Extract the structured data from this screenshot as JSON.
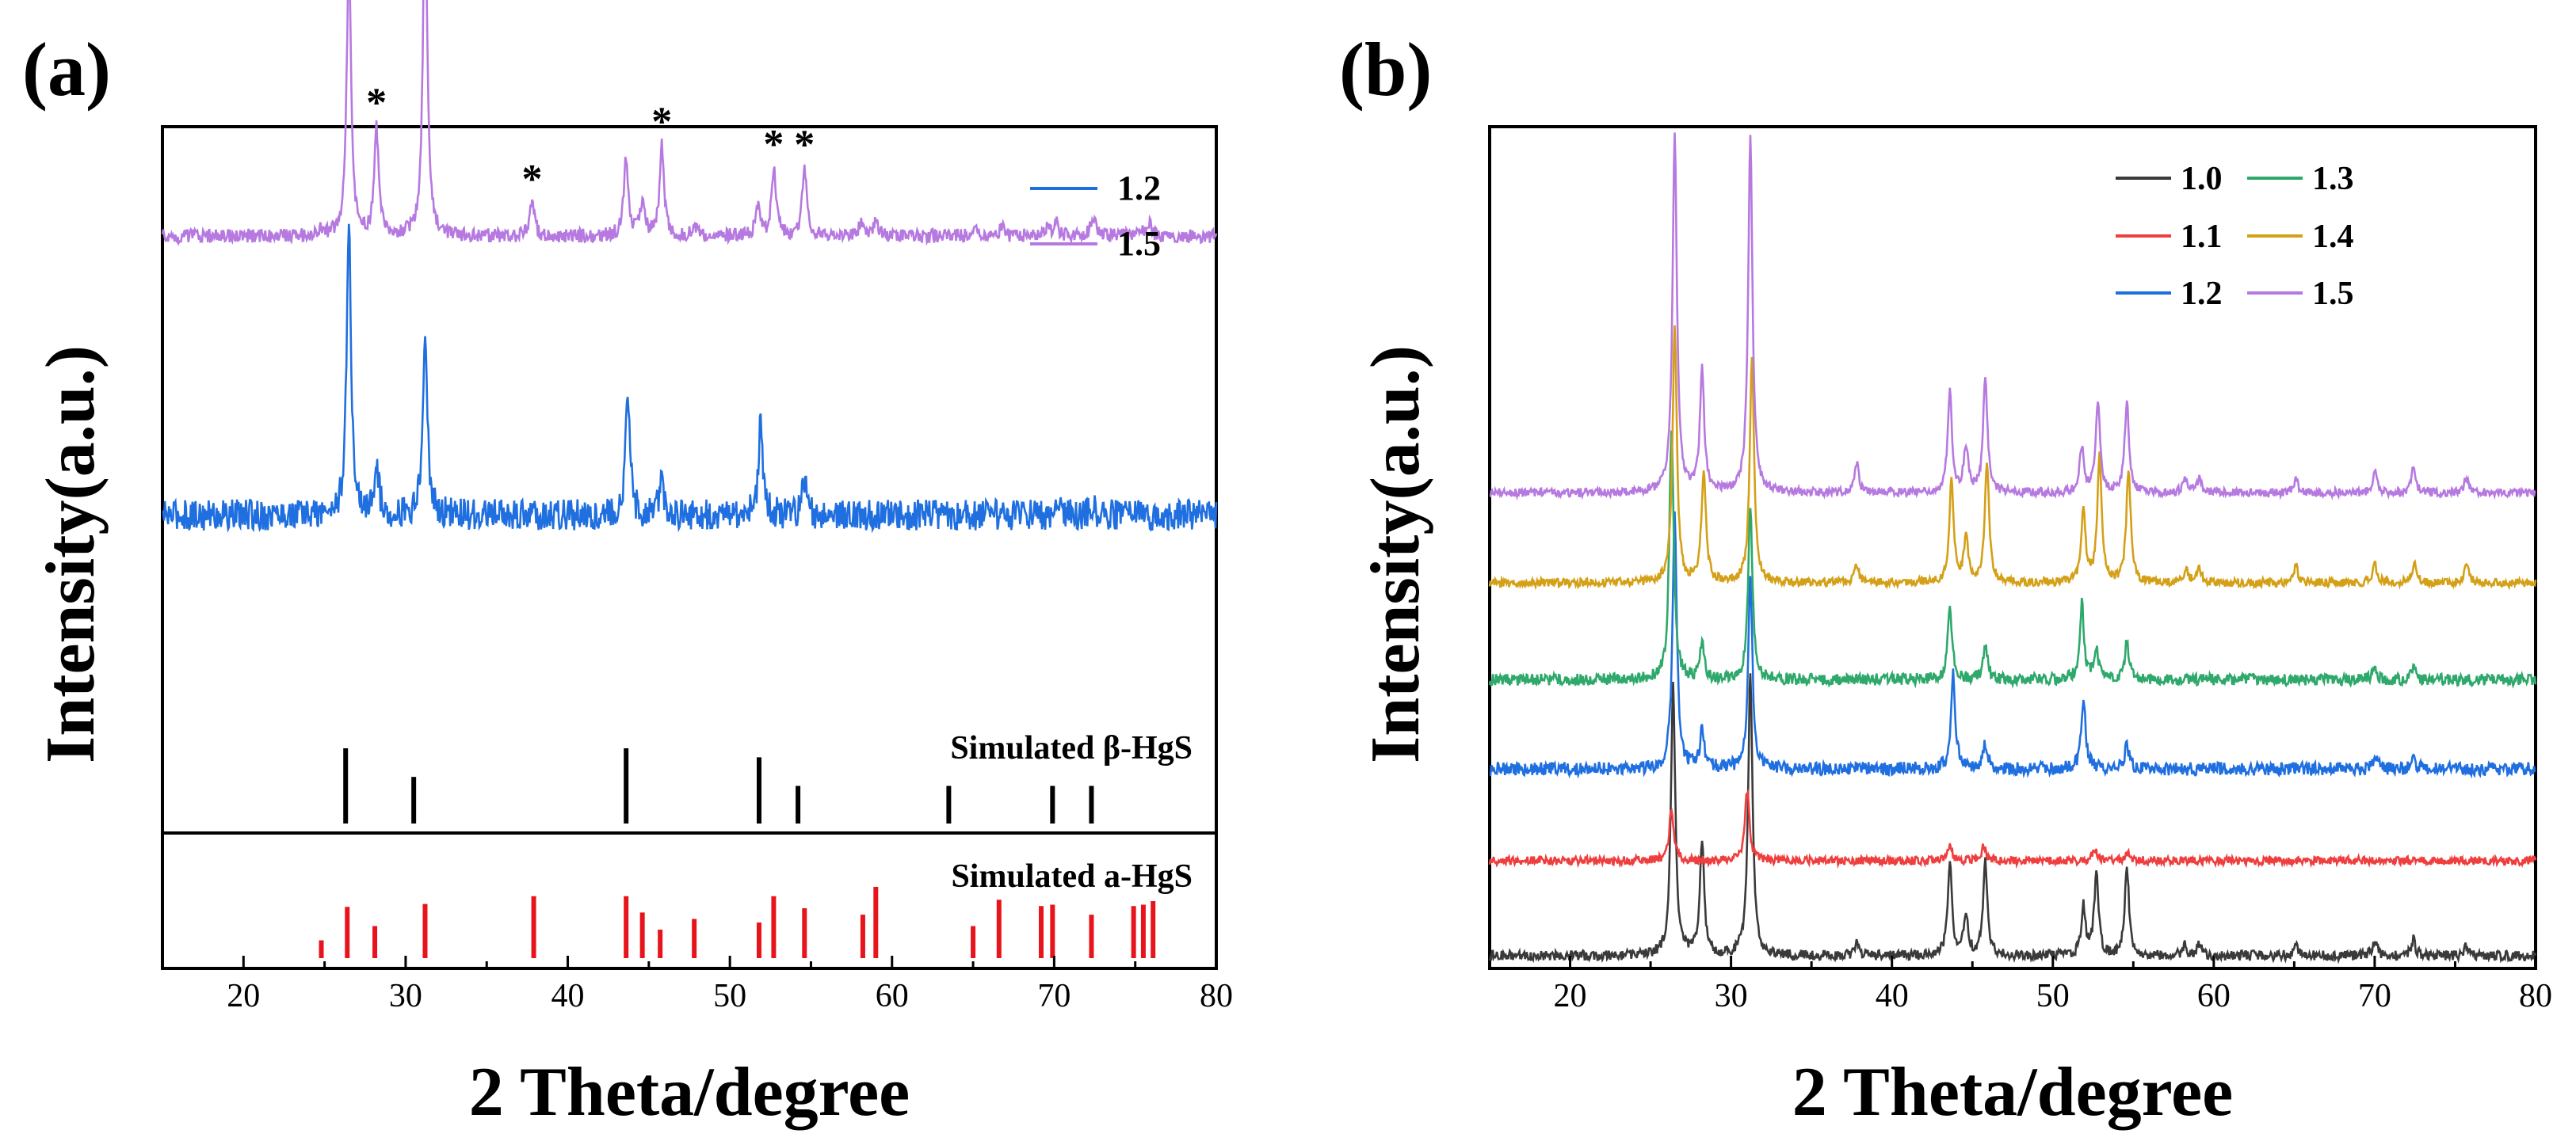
{
  "chart_data": [
    {
      "panel_label": "(a)",
      "type": "line",
      "xlabel": "2 Theta/degree",
      "ylabel": "Intensity(a.u.)",
      "xlim": [
        15,
        80
      ],
      "xticks": [
        20,
        30,
        40,
        50,
        60,
        70,
        80
      ],
      "grid": false,
      "legend": {
        "placement": "top-right",
        "entries": [
          "1.2",
          "1.5"
        ]
      },
      "series": [
        {
          "name": "1.2",
          "color": "#1f6fe0",
          "baseline": 0.45,
          "scale": 0.41,
          "noise": 0.022,
          "peaks": [
            [
              26.5,
              1.0
            ],
            [
              28.2,
              0.18
            ],
            [
              31.2,
              0.66
            ],
            [
              43.7,
              0.42
            ],
            [
              45.8,
              0.12
            ],
            [
              51.9,
              0.32
            ],
            [
              54.6,
              0.12
            ],
            [
              70.1,
              0.05
            ],
            [
              72.4,
              0.04
            ]
          ]
        },
        {
          "name": "1.5",
          "color": "#b679e0",
          "baseline": 0.845,
          "scale": 0.4,
          "noise": 0.01,
          "peaks": [
            [
              24.8,
              0.02
            ],
            [
              26.5,
              1.0
            ],
            [
              28.2,
              0.38
            ],
            [
              31.2,
              1.21
            ],
            [
              37.8,
              0.12
            ],
            [
              43.6,
              0.28
            ],
            [
              44.6,
              0.12
            ],
            [
              45.8,
              0.32
            ],
            [
              47.8,
              0.04
            ],
            [
              51.7,
              0.11
            ],
            [
              52.7,
              0.24
            ],
            [
              54.6,
              0.24
            ],
            [
              58.1,
              0.05
            ],
            [
              59.0,
              0.05
            ],
            [
              65.1,
              0.05
            ],
            [
              66.8,
              0.03
            ],
            [
              69.5,
              0.03
            ],
            [
              70.1,
              0.05
            ],
            [
              72.4,
              0.07
            ],
            [
              75.2,
              0.03
            ],
            [
              75.9,
              0.04
            ]
          ]
        }
      ],
      "asterisks": [
        28.2,
        37.8,
        45.8,
        52.7,
        54.6
      ],
      "reference_patterns": [
        {
          "name": "Simulated β-HgS",
          "color": "#000000",
          "lines": [
            [
              26.3,
              1.0
            ],
            [
              30.5,
              0.62
            ],
            [
              43.6,
              1.0
            ],
            [
              51.8,
              0.88
            ],
            [
              54.2,
              0.5
            ],
            [
              63.5,
              0.5
            ],
            [
              69.9,
              0.5
            ],
            [
              72.3,
              0.5
            ]
          ]
        },
        {
          "name": "Simulated a-HgS",
          "color": "#e8141c",
          "lines": [
            [
              24.8,
              0.25
            ],
            [
              26.4,
              0.72
            ],
            [
              28.1,
              0.45
            ],
            [
              31.2,
              0.76
            ],
            [
              37.9,
              0.87
            ],
            [
              43.6,
              0.87
            ],
            [
              44.6,
              0.64
            ],
            [
              45.7,
              0.4
            ],
            [
              47.8,
              0.55
            ],
            [
              51.8,
              0.5
            ],
            [
              52.7,
              0.87
            ],
            [
              54.6,
              0.7
            ],
            [
              58.2,
              0.61
            ],
            [
              59.0,
              1.0
            ],
            [
              65.0,
              0.45
            ],
            [
              66.6,
              0.82
            ],
            [
              69.2,
              0.73
            ],
            [
              69.9,
              0.75
            ],
            [
              72.3,
              0.61
            ],
            [
              74.9,
              0.73
            ],
            [
              75.5,
              0.75
            ],
            [
              76.1,
              0.8
            ]
          ]
        }
      ]
    },
    {
      "panel_label": "(b)",
      "type": "line",
      "xlabel": "2 Theta/degree",
      "ylabel": "Intensity(a.u.)",
      "xlim": [
        15,
        80
      ],
      "xticks": [
        20,
        30,
        40,
        50,
        60,
        70,
        80
      ],
      "grid": false,
      "legend": {
        "placement": "top-right",
        "entries": [
          "1.0",
          "1.3",
          "1.1",
          "1.4",
          "1.2",
          "1.5"
        ]
      },
      "series": [
        {
          "name": "1.0",
          "color": "#3a3a3a",
          "baseline": 0.015,
          "scale": 0.32,
          "noise": 0.006,
          "peaks": [
            [
              26.4,
              1.0
            ],
            [
              28.2,
              0.42
            ],
            [
              31.2,
              1.06
            ],
            [
              37.8,
              0.05
            ],
            [
              43.6,
              0.34
            ],
            [
              44.6,
              0.15
            ],
            [
              45.8,
              0.35
            ],
            [
              51.9,
              0.18
            ],
            [
              52.7,
              0.3
            ],
            [
              54.6,
              0.33
            ],
            [
              58.2,
              0.04
            ],
            [
              59.1,
              0.04
            ],
            [
              65.1,
              0.04
            ],
            [
              70.0,
              0.06
            ],
            [
              72.4,
              0.06
            ],
            [
              75.7,
              0.04
            ]
          ]
        },
        {
          "name": "1.1",
          "color": "#ef3e3e",
          "baseline": 0.128,
          "scale": 0.14,
          "noise": 0.005,
          "peaks": [
            [
              26.3,
              0.45
            ],
            [
              31.0,
              0.6
            ],
            [
              43.6,
              0.12
            ],
            [
              45.7,
              0.12
            ],
            [
              52.6,
              0.1
            ],
            [
              54.6,
              0.07
            ]
          ]
        },
        {
          "name": "1.2",
          "color": "#1f6fe0",
          "baseline": 0.237,
          "scale": 0.3,
          "noise": 0.008,
          "peaks": [
            [
              26.5,
              1.0
            ],
            [
              28.2,
              0.15
            ],
            [
              31.2,
              0.75
            ],
            [
              43.8,
              0.38
            ],
            [
              45.8,
              0.1
            ],
            [
              51.9,
              0.28
            ],
            [
              54.6,
              0.1
            ],
            [
              70.0,
              0.05
            ],
            [
              72.4,
              0.04
            ]
          ]
        },
        {
          "name": "1.3",
          "color": "#2ea86b",
          "baseline": 0.343,
          "scale": 0.3,
          "noise": 0.007,
          "peaks": [
            [
              26.3,
              1.0
            ],
            [
              28.2,
              0.15
            ],
            [
              31.2,
              0.7
            ],
            [
              43.6,
              0.3
            ],
            [
              45.8,
              0.14
            ],
            [
              51.8,
              0.3
            ],
            [
              52.7,
              0.12
            ],
            [
              54.6,
              0.15
            ],
            [
              70.0,
              0.05
            ],
            [
              72.4,
              0.05
            ]
          ]
        },
        {
          "name": "1.4",
          "color": "#d4a017",
          "baseline": 0.458,
          "scale": 0.3,
          "noise": 0.005,
          "peaks": [
            [
              26.5,
              1.0
            ],
            [
              28.3,
              0.45
            ],
            [
              31.3,
              0.9
            ],
            [
              37.8,
              0.08
            ],
            [
              43.7,
              0.4
            ],
            [
              44.6,
              0.18
            ],
            [
              45.9,
              0.48
            ],
            [
              51.9,
              0.28
            ],
            [
              52.9,
              0.5
            ],
            [
              54.7,
              0.45
            ],
            [
              58.3,
              0.05
            ],
            [
              59.1,
              0.06
            ],
            [
              65.1,
              0.07
            ],
            [
              70.0,
              0.08
            ],
            [
              72.5,
              0.08
            ],
            [
              75.7,
              0.08
            ]
          ]
        },
        {
          "name": "1.5",
          "color": "#b679e0",
          "baseline": 0.565,
          "scale": 0.3,
          "noise": 0.005,
          "peaks": [
            [
              26.5,
              1.42
            ],
            [
              28.2,
              0.48
            ],
            [
              31.2,
              1.41
            ],
            [
              37.8,
              0.12
            ],
            [
              43.6,
              0.4
            ],
            [
              44.6,
              0.18
            ],
            [
              45.8,
              0.45
            ],
            [
              51.8,
              0.18
            ],
            [
              52.8,
              0.36
            ],
            [
              54.6,
              0.36
            ],
            [
              58.2,
              0.06
            ],
            [
              59.1,
              0.06
            ],
            [
              65.1,
              0.06
            ],
            [
              70.0,
              0.08
            ],
            [
              72.4,
              0.1
            ],
            [
              75.7,
              0.06
            ]
          ]
        }
      ]
    }
  ]
}
